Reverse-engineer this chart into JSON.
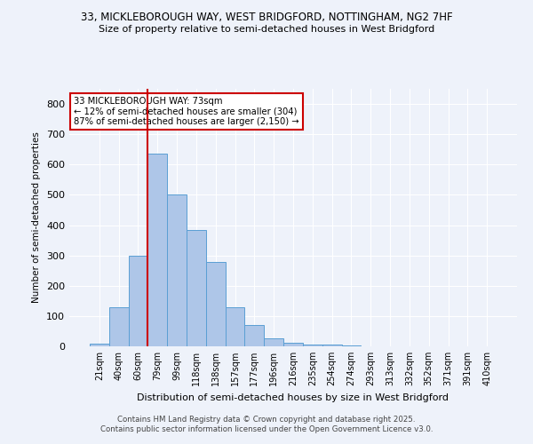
{
  "title_line1": "33, MICKLEBOROUGH WAY, WEST BRIDGFORD, NOTTINGHAM, NG2 7HF",
  "title_line2": "Size of property relative to semi-detached houses in West Bridgford",
  "bar_labels": [
    "21sqm",
    "40sqm",
    "60sqm",
    "79sqm",
    "99sqm",
    "118sqm",
    "138sqm",
    "157sqm",
    "177sqm",
    "196sqm",
    "216sqm",
    "235sqm",
    "254sqm",
    "274sqm",
    "293sqm",
    "313sqm",
    "332sqm",
    "352sqm",
    "371sqm",
    "391sqm",
    "410sqm"
  ],
  "bar_values": [
    10,
    128,
    300,
    635,
    500,
    383,
    278,
    130,
    70,
    25,
    13,
    5,
    5,
    4,
    0,
    0,
    0,
    0,
    0,
    0,
    0
  ],
  "bar_color": "#aec6e8",
  "bar_edgecolor": "#5a9fd4",
  "vline_color": "#cc0000",
  "ylabel": "Number of semi-detached properties",
  "xlabel": "Distribution of semi-detached houses by size in West Bridgford",
  "ylim": [
    0,
    850
  ],
  "yticks": [
    0,
    100,
    200,
    300,
    400,
    500,
    600,
    700,
    800
  ],
  "annotation_title": "33 MICKLEBOROUGH WAY: 73sqm",
  "annotation_line1": "← 12% of semi-detached houses are smaller (304)",
  "annotation_line2": "87% of semi-detached houses are larger (2,150) →",
  "annotation_box_color": "#ffffff",
  "annotation_box_edgecolor": "#cc0000",
  "footer_line1": "Contains HM Land Registry data © Crown copyright and database right 2025.",
  "footer_line2": "Contains public sector information licensed under the Open Government Licence v3.0.",
  "background_color": "#eef2fa",
  "grid_color": "#ffffff"
}
